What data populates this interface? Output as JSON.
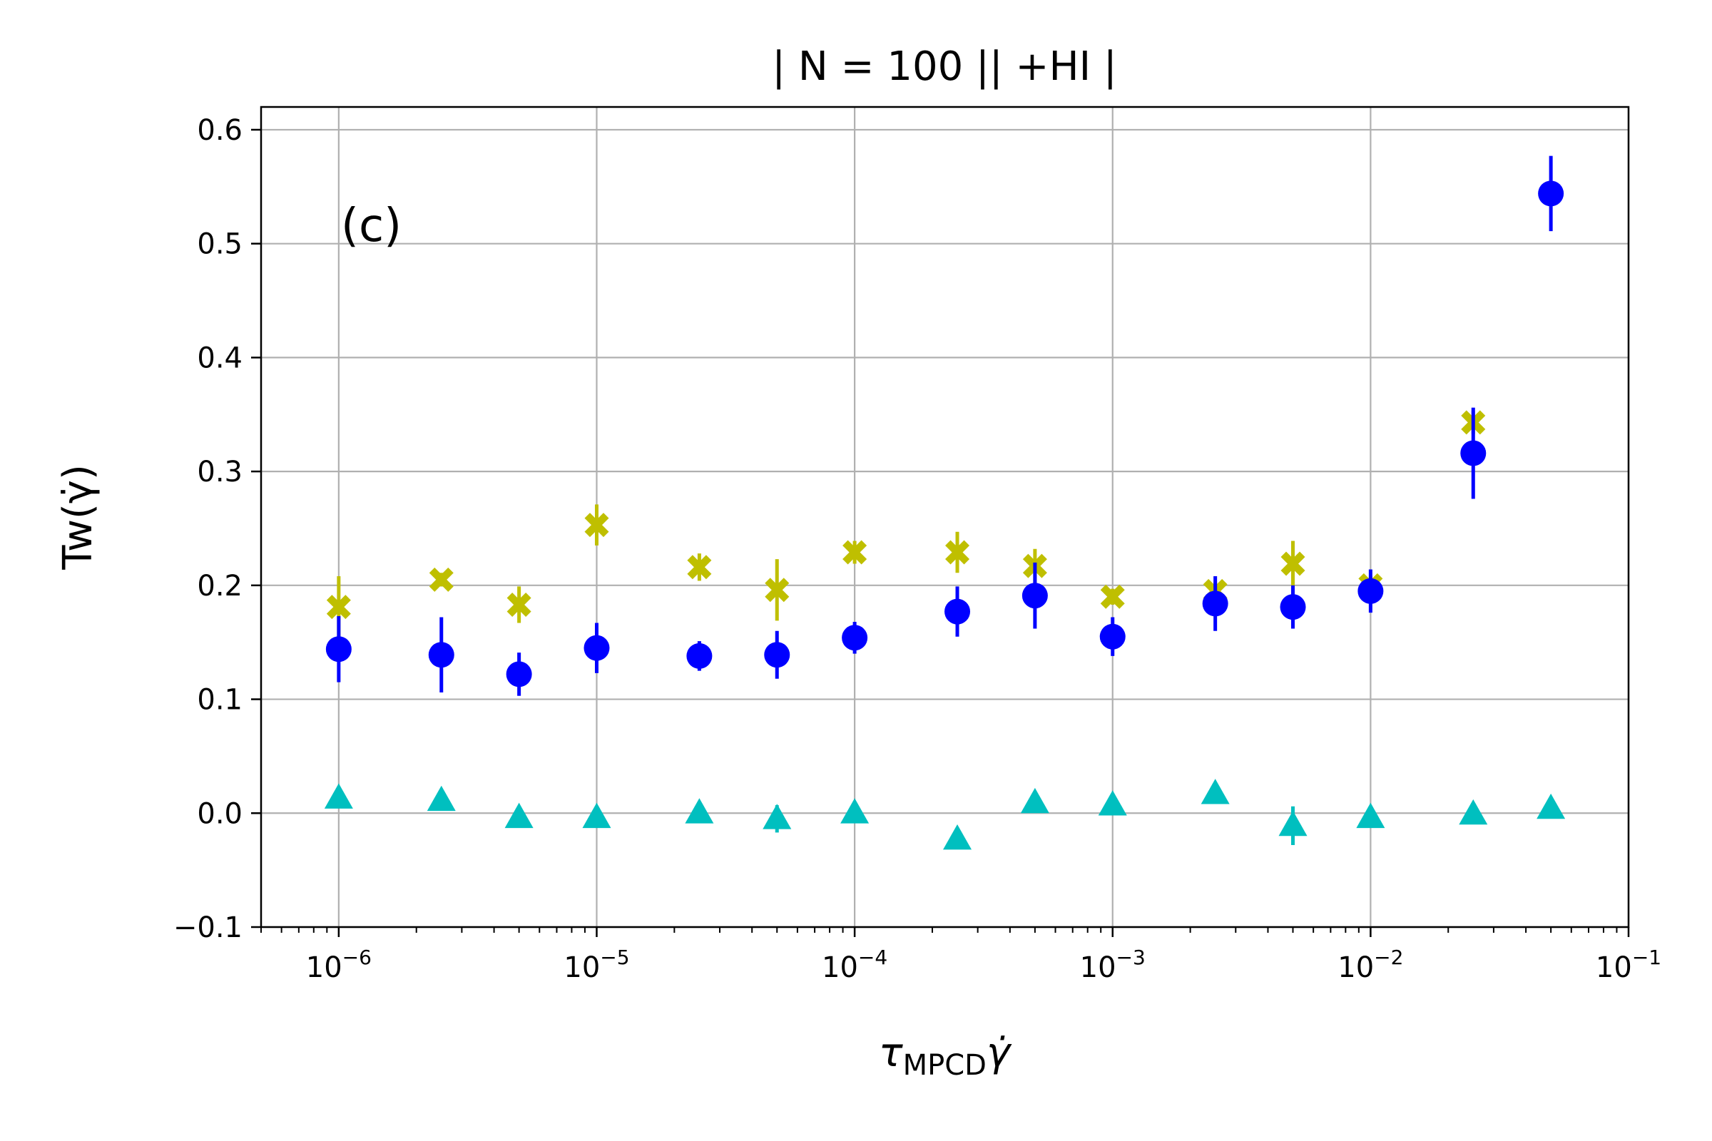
{
  "chart_data": {
    "type": "scatter",
    "title": "| N = 100 || +HI  |",
    "panel_label": "(c)",
    "ylabel": "Tw(γ̇)",
    "xlabel": {
      "symbol": "τ",
      "subscript": "MPCD",
      "suffix": "γ̇"
    },
    "xscale": "log",
    "xlim": [
      5e-07,
      0.1
    ],
    "ylim": [
      -0.1,
      0.62
    ],
    "grid": true,
    "x_ticks": [
      {
        "value": 1e-06,
        "base": "10",
        "exp": "−6"
      },
      {
        "value": 1e-05,
        "base": "10",
        "exp": "−5"
      },
      {
        "value": 0.0001,
        "base": "10",
        "exp": "−4"
      },
      {
        "value": 0.001,
        "base": "10",
        "exp": "−3"
      },
      {
        "value": 0.01,
        "base": "10",
        "exp": "−2"
      },
      {
        "value": 0.1,
        "base": "10",
        "exp": "−1"
      }
    ],
    "y_ticks": [
      {
        "value": -0.1,
        "label": "−0.1"
      },
      {
        "value": 0.0,
        "label": "0.0"
      },
      {
        "value": 0.1,
        "label": "0.1"
      },
      {
        "value": 0.2,
        "label": "0.2"
      },
      {
        "value": 0.3,
        "label": "0.3"
      },
      {
        "value": 0.4,
        "label": "0.4"
      },
      {
        "value": 0.5,
        "label": "0.5"
      },
      {
        "value": 0.6,
        "label": "0.6"
      }
    ],
    "series": [
      {
        "name": "yellow-x",
        "color": "#bfbf00",
        "marker": "X",
        "x": [
          1e-06,
          2.5e-06,
          5e-06,
          1e-05,
          2.5e-05,
          5e-05,
          0.0001,
          0.00025,
          0.0005,
          0.001,
          0.0025,
          0.005,
          0.01,
          0.025
        ],
        "y": [
          0.181,
          0.205,
          0.183,
          0.253,
          0.216,
          0.196,
          0.229,
          0.229,
          0.217,
          0.19,
          0.195,
          0.219,
          0.2,
          0.343
        ],
        "err": [
          0.027,
          0.006,
          0.016,
          0.018,
          0.012,
          0.027,
          0.01,
          0.018,
          0.015,
          0.007,
          0.008,
          0.02,
          0.008,
          0.01
        ]
      },
      {
        "name": "blue-circle",
        "color": "#0000ff",
        "marker": "o",
        "x": [
          1e-06,
          2.5e-06,
          5e-06,
          1e-05,
          2.5e-05,
          5e-05,
          0.0001,
          0.00025,
          0.0005,
          0.001,
          0.0025,
          0.005,
          0.01,
          0.025,
          0.05
        ],
        "y": [
          0.144,
          0.139,
          0.122,
          0.145,
          0.138,
          0.139,
          0.154,
          0.177,
          0.191,
          0.155,
          0.184,
          0.181,
          0.195,
          0.316,
          0.544
        ],
        "err": [
          0.029,
          0.033,
          0.019,
          0.022,
          0.013,
          0.021,
          0.014,
          0.022,
          0.029,
          0.017,
          0.024,
          0.019,
          0.019,
          0.04,
          0.033
        ]
      },
      {
        "name": "cyan-triangle",
        "color": "#00bfbf",
        "marker": "^",
        "x": [
          1e-06,
          2.5e-06,
          5e-06,
          1e-05,
          2.5e-05,
          5e-05,
          0.0001,
          0.00025,
          0.0005,
          0.001,
          0.0025,
          0.005,
          0.01,
          0.025,
          0.05
        ],
        "y": [
          0.013,
          0.011,
          -0.004,
          -0.004,
          0.0,
          -0.005,
          0.0,
          -0.023,
          0.009,
          0.007,
          0.017,
          -0.011,
          -0.004,
          -0.001,
          0.004
        ],
        "err": [
          0.006,
          0.004,
          0.004,
          0.004,
          0.004,
          0.012,
          0.004,
          0.004,
          0.004,
          0.004,
          0.004,
          0.017,
          0.004,
          0.004,
          0.004
        ]
      }
    ]
  }
}
